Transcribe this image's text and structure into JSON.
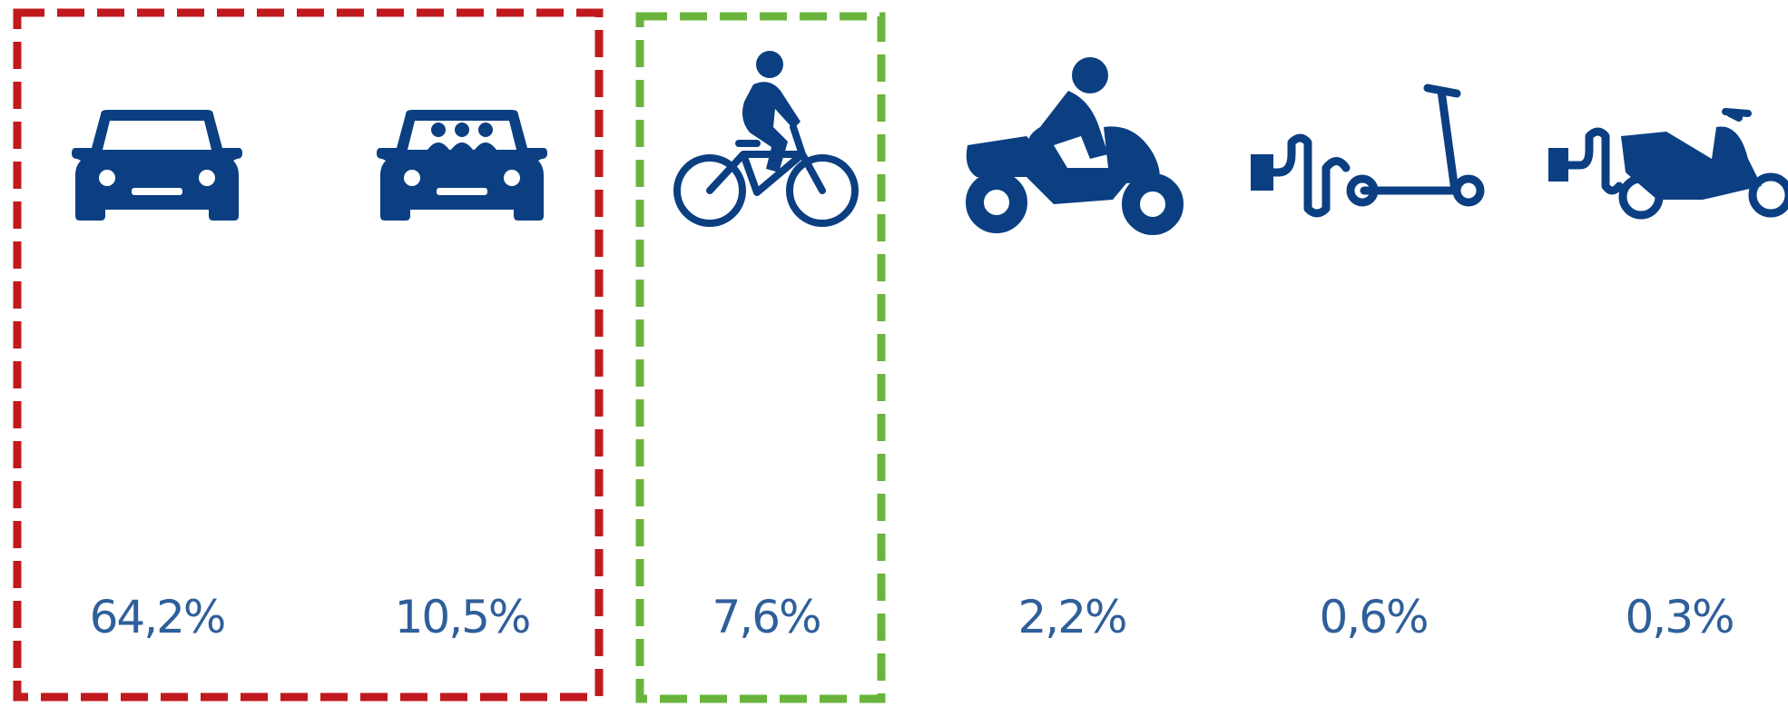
{
  "items": [
    {
      "label": "64,2%"
    },
    {
      "label": "10,5%"
    },
    {
      "label": "7,6%"
    },
    {
      "label": "2,2%"
    },
    {
      "label": "0,6%"
    },
    {
      "label": "0,3%"
    }
  ]
}
